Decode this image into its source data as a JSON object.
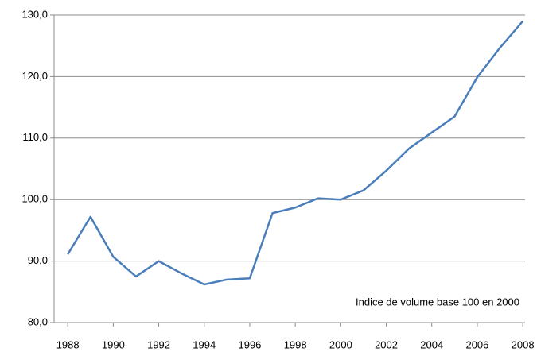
{
  "chart_data": {
    "type": "line",
    "annotation": "Indice de volume base 100 en 2000",
    "x": [
      1988,
      1989,
      1990,
      1991,
      1992,
      1993,
      1994,
      1995,
      1996,
      1997,
      1998,
      1999,
      2000,
      2001,
      2002,
      2003,
      2004,
      2005,
      2006,
      2007,
      2008
    ],
    "series": [
      {
        "color": "#4a7ebb",
        "values": [
          91.1,
          97.2,
          90.7,
          87.5,
          90.0,
          88.0,
          86.2,
          87.0,
          87.2,
          97.8,
          98.7,
          100.2,
          100.0,
          101.5,
          104.7,
          108.3,
          110.9,
          113.5,
          119.9,
          124.7,
          129.0
        ]
      }
    ],
    "xlim": [
      1987.4,
      2008.1
    ],
    "xticks": [
      1988,
      1990,
      1992,
      1994,
      1996,
      1998,
      2000,
      2002,
      2004,
      2006,
      2008
    ],
    "ylim": [
      80,
      130
    ],
    "yticks": [
      {
        "value": 80,
        "label": "80,0"
      },
      {
        "value": 90,
        "label": "90,0"
      },
      {
        "value": 100,
        "label": "100,0"
      },
      {
        "value": 110,
        "label": "110,0"
      },
      {
        "value": 120,
        "label": "120,0"
      },
      {
        "value": 130,
        "label": "130,0"
      }
    ],
    "grid": true
  }
}
